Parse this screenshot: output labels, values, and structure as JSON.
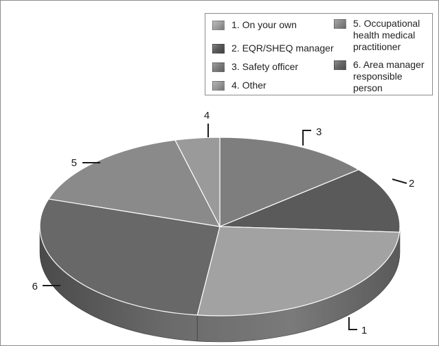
{
  "chart_data": {
    "type": "pie",
    "categories": [
      "1",
      "2",
      "3",
      "4",
      "5",
      "6"
    ],
    "values": [
      26,
      12,
      14,
      4,
      16,
      28
    ],
    "legend": [
      "1. On your own",
      "2. EQR/SHEQ manager",
      "3. Safety officer",
      "4. Other",
      "5. Occupational health medical practitioner",
      "6. Area manager responsible person"
    ],
    "colors": [
      "#a2a2a2",
      "#5a5a5a",
      "#7e7e7e",
      "#9a9a9a",
      "#8a8a8a",
      "#686868"
    ],
    "legend_placement": "top-right"
  }
}
